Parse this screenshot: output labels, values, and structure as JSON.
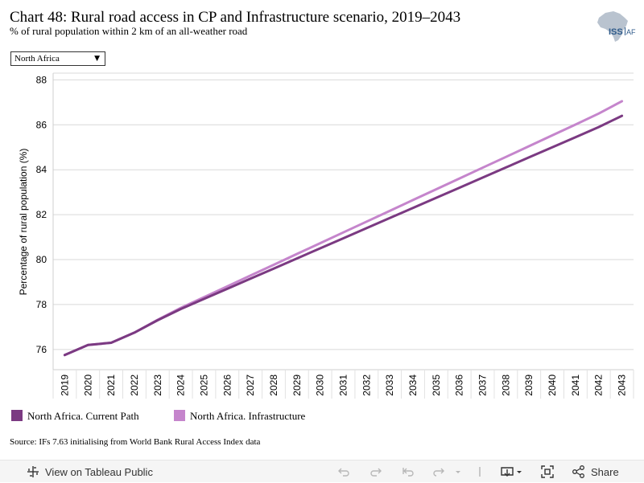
{
  "header": {
    "title": "Chart 48: Rural road access in CP and Infrastructure scenario, 2019–2043",
    "subtitle": "% of rural population within 2 km of an all-weather road",
    "logo_text": "ISS AFRICA"
  },
  "filter": {
    "selected": "North Africa"
  },
  "chart_data": {
    "type": "line",
    "title": "Chart 48: Rural road access in CP and Infrastructure scenario, 2019–2043",
    "subtitle": "% of rural population within 2 km of an all-weather road",
    "xlabel": "",
    "ylabel": "Percentage of rural population (%)",
    "x": [
      2019,
      2020,
      2021,
      2022,
      2023,
      2024,
      2025,
      2026,
      2027,
      2028,
      2029,
      2030,
      2031,
      2032,
      2033,
      2034,
      2035,
      2036,
      2037,
      2038,
      2039,
      2040,
      2041,
      2042,
      2043
    ],
    "ylim": [
      75.1,
      88.3
    ],
    "yticks": [
      76,
      78,
      80,
      82,
      84,
      86,
      88
    ],
    "grid": true,
    "legend": "bottom",
    "series": [
      {
        "name": "North Africa. Current Path",
        "color": "#7b3a82",
        "values": [
          75.75,
          76.2,
          76.3,
          76.75,
          77.3,
          77.8,
          78.25,
          78.7,
          79.15,
          79.6,
          80.05,
          80.5,
          80.95,
          81.4,
          81.85,
          82.3,
          82.75,
          83.2,
          83.65,
          84.1,
          84.55,
          85.0,
          85.45,
          85.9,
          86.4
        ]
      },
      {
        "name": "North Africa. Infrastructure",
        "color": "#c585cc",
        "values": [
          75.75,
          76.2,
          76.3,
          76.75,
          77.32,
          77.85,
          78.33,
          78.81,
          79.29,
          79.77,
          80.25,
          80.73,
          81.21,
          81.69,
          82.17,
          82.65,
          83.13,
          83.61,
          84.09,
          84.57,
          85.05,
          85.53,
          86.01,
          86.5,
          87.05
        ]
      }
    ]
  },
  "legend": {
    "items": [
      {
        "label": "North Africa. Current Path",
        "color": "#7b3a82"
      },
      {
        "label": "North Africa. Infrastructure",
        "color": "#c585cc"
      }
    ]
  },
  "source": "Source: IFs 7.63 initialising from World Bank Rural Access Index data",
  "toolbar": {
    "view_label": "View on Tableau Public",
    "share_label": "Share"
  }
}
